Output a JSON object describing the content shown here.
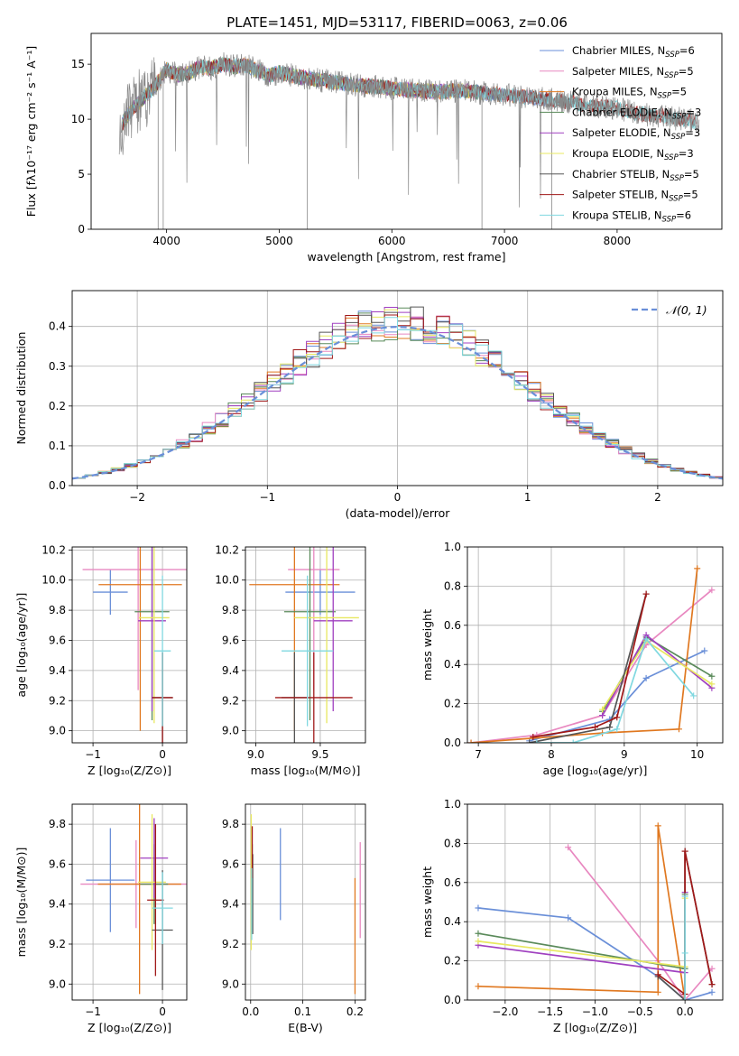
{
  "figure_title": "PLATE=1451, MJD=53117, FIBERID=0063, z=0.06",
  "colors": {
    "Chabrier MILES": "#6a8fd8",
    "Salpeter MILES": "#e888c0",
    "Kroupa MILES": "#e07820",
    "Chabrier ELODIE": "#5a8a5a",
    "Salpeter ELODIE": "#a040c0",
    "Kroupa ELODIE": "#e8e860",
    "Chabrier STELIB": "#555555",
    "Salpeter STELIB": "#a01818",
    "Kroupa STELIB": "#80d8e0",
    "data": "#888888",
    "normal": "#6a8fd8"
  },
  "chart_data": [
    {
      "id": "spectrum",
      "type": "line",
      "title": "PLATE=1451, MJD=53117, FIBERID=0063, z=0.06",
      "xlabel": "wavelength [Angstrom, rest frame]",
      "ylabel": "Flux [fλ10⁻¹⁷ erg cm⁻² s⁻¹ A⁻¹]",
      "xlim": [
        3330,
        8930
      ],
      "ylim": [
        0,
        17.8
      ],
      "xticks": [
        4000,
        5000,
        6000,
        7000,
        8000
      ],
      "yticks": [
        0,
        5,
        10,
        15
      ],
      "grid": false,
      "legend_position": "top-right",
      "continuum": {
        "x": [
          3600,
          3700,
          3800,
          3900,
          4000,
          4100,
          4200,
          4300,
          4400,
          4500,
          4600,
          4700,
          4800,
          4900,
          5000,
          5200,
          5400,
          5600,
          5800,
          6000,
          6200,
          6400,
          6600,
          6800,
          7000,
          7200,
          7400,
          7600,
          7800,
          8000,
          8200,
          8400,
          8600,
          8700
        ],
        "y": [
          9.5,
          11.0,
          12.0,
          13.0,
          14.5,
          14.0,
          14.2,
          14.8,
          14.6,
          15.0,
          14.8,
          14.9,
          14.5,
          14.0,
          14.2,
          13.8,
          13.5,
          13.2,
          13.0,
          12.8,
          12.6,
          12.5,
          12.6,
          12.4,
          12.2,
          12.0,
          11.8,
          11.5,
          11.2,
          11.0,
          10.5,
          10.2,
          10.0,
          9.8
        ]
      },
      "series_meta": [
        {
          "name": "Chabrier MILES",
          "nssp": "6"
        },
        {
          "name": "Salpeter MILES",
          "nssp": "5"
        },
        {
          "name": "Kroupa MILES",
          "nssp": "5"
        },
        {
          "name": "Chabrier ELODIE",
          "nssp": "3"
        },
        {
          "name": "Salpeter ELODIE",
          "nssp": "3"
        },
        {
          "name": "Kroupa ELODIE",
          "nssp": "3"
        },
        {
          "name": "Chabrier STELIB",
          "nssp": "5"
        },
        {
          "name": "Salpeter STELIB",
          "nssp": "5"
        },
        {
          "name": "Kroupa STELIB",
          "nssp": "6"
        }
      ]
    },
    {
      "id": "residuals",
      "type": "bar",
      "xlabel": "(data-model)/error",
      "ylabel": "Normed distribution",
      "xlim": [
        -2.5,
        2.5
      ],
      "ylim": [
        0,
        0.49
      ],
      "xticks": [
        -2,
        -1,
        0,
        1,
        2
      ],
      "yticks": [
        0.0,
        0.1,
        0.2,
        0.3,
        0.4
      ],
      "grid": true,
      "legend": "𝒩(0, 1)",
      "legend_position": "top-right",
      "bin_width": 0.1
    },
    {
      "id": "age-vs-Z",
      "type": "scatter",
      "xlabel": "Z [log₁₀(Z/Z⊙)]",
      "ylabel": "age  [log₁₀(age/yr)]",
      "xlim": [
        -1.3,
        0.35
      ],
      "ylim": [
        8.92,
        10.22
      ],
      "xticks": [
        -1,
        0
      ],
      "yticks": [
        9.0,
        9.2,
        9.4,
        9.6,
        9.8,
        10.0,
        10.2
      ],
      "grid": true,
      "points": [
        {
          "series": "Chabrier MILES",
          "x": -0.75,
          "xerr": 0.25,
          "y": 9.92,
          "yerr": 0.15
        },
        {
          "series": "Salpeter MILES",
          "x": -0.35,
          "xerr": 0.8,
          "y": 10.07,
          "yerr": 0.8
        },
        {
          "series": "Kroupa MILES",
          "x": -0.32,
          "xerr": 0.6,
          "y": 9.97,
          "yerr": 0.97
        },
        {
          "series": "Chabrier ELODIE",
          "x": -0.15,
          "xerr": 0.25,
          "y": 9.79,
          "yerr": 0.72
        },
        {
          "series": "Salpeter ELODIE",
          "x": -0.15,
          "xerr": 0.2,
          "y": 9.73,
          "yerr": 0.6
        },
        {
          "series": "Kroupa ELODIE",
          "x": -0.12,
          "xerr": 0.22,
          "y": 9.75,
          "yerr": 0.7
        },
        {
          "series": "Chabrier STELIB",
          "x": 0.0,
          "xerr": 0.15,
          "y": 9.22,
          "yerr": 0.3
        },
        {
          "series": "Salpeter STELIB",
          "x": 0.0,
          "xerr": 0.15,
          "y": 9.22,
          "yerr": 0.3
        },
        {
          "series": "Kroupa STELIB",
          "x": 0.0,
          "xerr": 0.12,
          "y": 9.53,
          "yerr": 0.5
        }
      ]
    },
    {
      "id": "age-vs-mass",
      "type": "scatter",
      "xlabel": "mass [log₁₀(M/M⊙)]",
      "ylabel": "",
      "xlim": [
        8.92,
        9.85
      ],
      "ylim": [
        8.92,
        10.22
      ],
      "xticks": [
        9.0,
        9.5
      ],
      "yticks": [
        9.0,
        9.2,
        9.4,
        9.6,
        9.8,
        10.0,
        10.2
      ],
      "grid": true,
      "points": [
        {
          "series": "Chabrier MILES",
          "x": 9.5,
          "xerr": 0.27,
          "y": 9.92,
          "yerr": 0.15
        },
        {
          "series": "Salpeter MILES",
          "x": 9.45,
          "xerr": 0.2,
          "y": 10.07,
          "yerr": 0.8
        },
        {
          "series": "Kroupa MILES",
          "x": 9.3,
          "xerr": 0.35,
          "y": 9.97,
          "yerr": 0.97
        },
        {
          "series": "Chabrier ELODIE",
          "x": 9.42,
          "xerr": 0.2,
          "y": 9.79,
          "yerr": 0.72
        },
        {
          "series": "Salpeter ELODIE",
          "x": 9.6,
          "xerr": 0.15,
          "y": 9.73,
          "yerr": 0.6
        },
        {
          "series": "Kroupa ELODIE",
          "x": 9.55,
          "xerr": 0.25,
          "y": 9.75,
          "yerr": 0.7
        },
        {
          "series": "Chabrier STELIB",
          "x": 9.3,
          "xerr": 0.1,
          "y": 9.22,
          "yerr": 0.3
        },
        {
          "series": "Salpeter STELIB",
          "x": 9.45,
          "xerr": 0.3,
          "y": 9.22,
          "yerr": 0.3
        },
        {
          "series": "Kroupa STELIB",
          "x": 9.4,
          "xerr": 0.2,
          "y": 9.53,
          "yerr": 0.5
        }
      ]
    },
    {
      "id": "massweight-vs-age",
      "type": "line",
      "xlabel": "age  [log₁₀(age/yr)]",
      "ylabel": "mass weight",
      "xlim": [
        6.85,
        10.35
      ],
      "ylim": [
        0,
        1.0
      ],
      "xticks": [
        7,
        8,
        9,
        10
      ],
      "yticks": [
        0.0,
        0.2,
        0.4,
        0.6,
        0.8,
        1.0
      ],
      "grid": true,
      "series": [
        {
          "name": "Chabrier MILES",
          "x": [
            7.7,
            8.8,
            9.3,
            10.1
          ],
          "y": [
            0.01,
            0.12,
            0.33,
            0.47
          ]
        },
        {
          "name": "Salpeter MILES",
          "x": [
            6.9,
            7.8,
            8.7,
            9.3,
            10.2
          ],
          "y": [
            0.0,
            0.04,
            0.14,
            0.5,
            0.78
          ]
        },
        {
          "name": "Kroupa MILES",
          "x": [
            6.9,
            8.7,
            9.75,
            10.0
          ],
          "y": [
            0.0,
            0.05,
            0.07,
            0.89
          ]
        },
        {
          "name": "Chabrier ELODIE",
          "x": [
            8.7,
            9.3,
            10.2
          ],
          "y": [
            0.16,
            0.54,
            0.34
          ]
        },
        {
          "name": "Salpeter ELODIE",
          "x": [
            8.7,
            9.3,
            10.2
          ],
          "y": [
            0.14,
            0.55,
            0.28
          ]
        },
        {
          "name": "Kroupa ELODIE",
          "x": [
            8.7,
            9.3,
            10.2
          ],
          "y": [
            0.17,
            0.52,
            0.3
          ]
        },
        {
          "name": "Chabrier STELIB",
          "x": [
            7.7,
            8.8,
            9.3
          ],
          "y": [
            0.0,
            0.08,
            0.76
          ]
        },
        {
          "name": "Salpeter STELIB",
          "x": [
            7.75,
            8.6,
            8.9,
            9.3
          ],
          "y": [
            0.03,
            0.08,
            0.13,
            0.76
          ]
        },
        {
          "name": "Kroupa STELIB",
          "x": [
            7.8,
            8.3,
            8.9,
            9.3,
            9.95
          ],
          "y": [
            0.0,
            0.0,
            0.07,
            0.53,
            0.24
          ]
        }
      ]
    },
    {
      "id": "mass-vs-Z",
      "type": "scatter",
      "xlabel": "Z [log₁₀(Z/Z⊙)]",
      "ylabel": "mass [log₁₀(M/M⊙)]",
      "xlim": [
        -1.3,
        0.35
      ],
      "ylim": [
        8.92,
        9.9
      ],
      "xticks": [
        -1,
        0
      ],
      "yticks": [
        9.0,
        9.2,
        9.4,
        9.6,
        9.8
      ],
      "grid": true,
      "points": [
        {
          "series": "Chabrier MILES",
          "x": -0.75,
          "xerr": 0.35,
          "y": 9.52,
          "yerr": 0.26
        },
        {
          "series": "Salpeter MILES",
          "x": -0.38,
          "xerr": 0.8,
          "y": 9.5,
          "yerr": 0.22
        },
        {
          "series": "Kroupa MILES",
          "x": -0.33,
          "xerr": 0.6,
          "y": 9.5,
          "yerr": 0.55
        },
        {
          "series": "Chabrier ELODIE",
          "x": -0.12,
          "xerr": 0.2,
          "y": 9.5,
          "yerr": 0.2
        },
        {
          "series": "Salpeter ELODIE",
          "x": -0.12,
          "xerr": 0.2,
          "y": 9.63,
          "yerr": 0.2
        },
        {
          "series": "Kroupa ELODIE",
          "x": -0.15,
          "xerr": 0.2,
          "y": 9.51,
          "yerr": 0.34
        },
        {
          "series": "Chabrier STELIB",
          "x": 0.0,
          "xerr": 0.15,
          "y": 9.27,
          "yerr": 0.3
        },
        {
          "series": "Salpeter STELIB",
          "x": -0.1,
          "xerr": 0.12,
          "y": 9.42,
          "yerr": 0.38
        },
        {
          "series": "Kroupa STELIB",
          "x": 0.0,
          "xerr": 0.15,
          "y": 9.38,
          "yerr": 0.18
        }
      ]
    },
    {
      "id": "mass-vs-EBV",
      "type": "scatter",
      "xlabel": "E(B-V)",
      "ylabel": "",
      "xlim": [
        -0.01,
        0.22
      ],
      "ylim": [
        8.92,
        9.9
      ],
      "xticks": [
        0.0,
        0.1,
        0.2
      ],
      "yticks": [
        9.0,
        9.2,
        9.4,
        9.6,
        9.8
      ],
      "grid": true,
      "points": [
        {
          "series": "Chabrier MILES",
          "x": 0.057,
          "y": 9.55,
          "yerr": 0.23
        },
        {
          "series": "Salpeter MILES",
          "x": 0.21,
          "y": 9.47,
          "yerr": 0.24
        },
        {
          "series": "Kroupa MILES",
          "x": 0.2,
          "y": 9.24,
          "yerr": 0.29
        },
        {
          "series": "Chabrier ELODIE",
          "x": 0.003,
          "y": 9.5,
          "yerr": 0.2
        },
        {
          "series": "Salpeter ELODIE",
          "x": 0.002,
          "y": 9.63,
          "yerr": 0.1
        },
        {
          "series": "Kroupa ELODIE",
          "x": 0.001,
          "y": 9.51,
          "yerr": 0.34
        },
        {
          "series": "Chabrier STELIB",
          "x": 0.004,
          "y": 9.45,
          "yerr": 0.2
        },
        {
          "series": "Salpeter STELIB",
          "x": 0.003,
          "y": 9.66,
          "yerr": 0.13
        },
        {
          "series": "Kroupa STELIB",
          "x": 0.002,
          "y": 9.4,
          "yerr": 0.18
        }
      ]
    },
    {
      "id": "massweight-vs-Z",
      "type": "line",
      "xlabel": "Z [log₁₀(Z/Z⊙)]",
      "ylabel": "mass weight",
      "xlim": [
        -2.42,
        0.42
      ],
      "ylim": [
        0,
        1.0
      ],
      "xticks": [
        -2.0,
        -1.5,
        -1.0,
        -0.5,
        0.0
      ],
      "yticks": [
        0.0,
        0.2,
        0.4,
        0.6,
        0.8,
        1.0
      ],
      "grid": true,
      "series": [
        {
          "name": "Chabrier MILES",
          "x": [
            -2.3,
            -1.3,
            -0.3,
            0.0,
            0.3
          ],
          "y": [
            0.47,
            0.42,
            0.12,
            0.0,
            0.04
          ]
        },
        {
          "name": "Salpeter MILES",
          "x": [
            -1.3,
            -0.3,
            0.0,
            0.3
          ],
          "y": [
            0.78,
            0.2,
            0.0,
            0.16
          ]
        },
        {
          "name": "Kroupa MILES",
          "x": [
            -2.3,
            -0.3,
            -0.3,
            0.0
          ],
          "y": [
            0.07,
            0.04,
            0.89,
            0.0
          ]
        },
        {
          "name": "Chabrier ELODIE",
          "x": [
            -2.3,
            0.0,
            0.0
          ],
          "y": [
            0.34,
            0.16,
            0.54
          ]
        },
        {
          "name": "Salpeter ELODIE",
          "x": [
            -2.3,
            0.0,
            0.0
          ],
          "y": [
            0.28,
            0.14,
            0.55
          ]
        },
        {
          "name": "Kroupa ELODIE",
          "x": [
            -2.3,
            0.0,
            0.0
          ],
          "y": [
            0.3,
            0.17,
            0.52
          ]
        },
        {
          "name": "Chabrier STELIB",
          "x": [
            -0.3,
            0.0,
            0.0,
            0.3
          ],
          "y": [
            0.12,
            0.0,
            0.76,
            0.08
          ]
        },
        {
          "name": "Salpeter STELIB",
          "x": [
            -0.3,
            0.0,
            0.0,
            0.3
          ],
          "y": [
            0.13,
            0.03,
            0.76,
            0.08
          ]
        },
        {
          "name": "Kroupa STELIB",
          "x": [
            0.0,
            0.0,
            0.0
          ],
          "y": [
            0.0,
            0.53,
            0.24
          ]
        }
      ]
    }
  ]
}
